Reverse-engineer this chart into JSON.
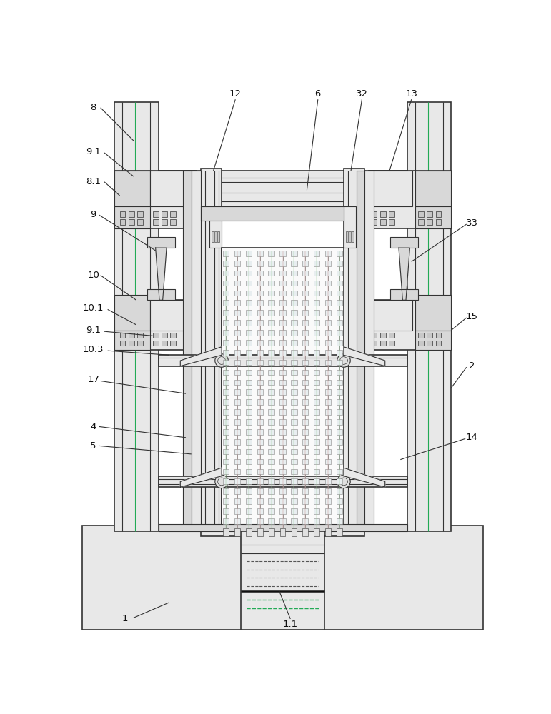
{
  "fig_w": 7.71,
  "fig_h": 10.0,
  "dpi": 100,
  "bg": "#ffffff",
  "lc": "#333333",
  "lc2": "#555555",
  "lc_thin": "#777777",
  "green": "#22aa55",
  "blade_fill": "#f5f5f5",
  "gray_fill": "#e8e8e8",
  "gray_fill2": "#d8d8d8",
  "gray_fill3": "#c8c8c8"
}
